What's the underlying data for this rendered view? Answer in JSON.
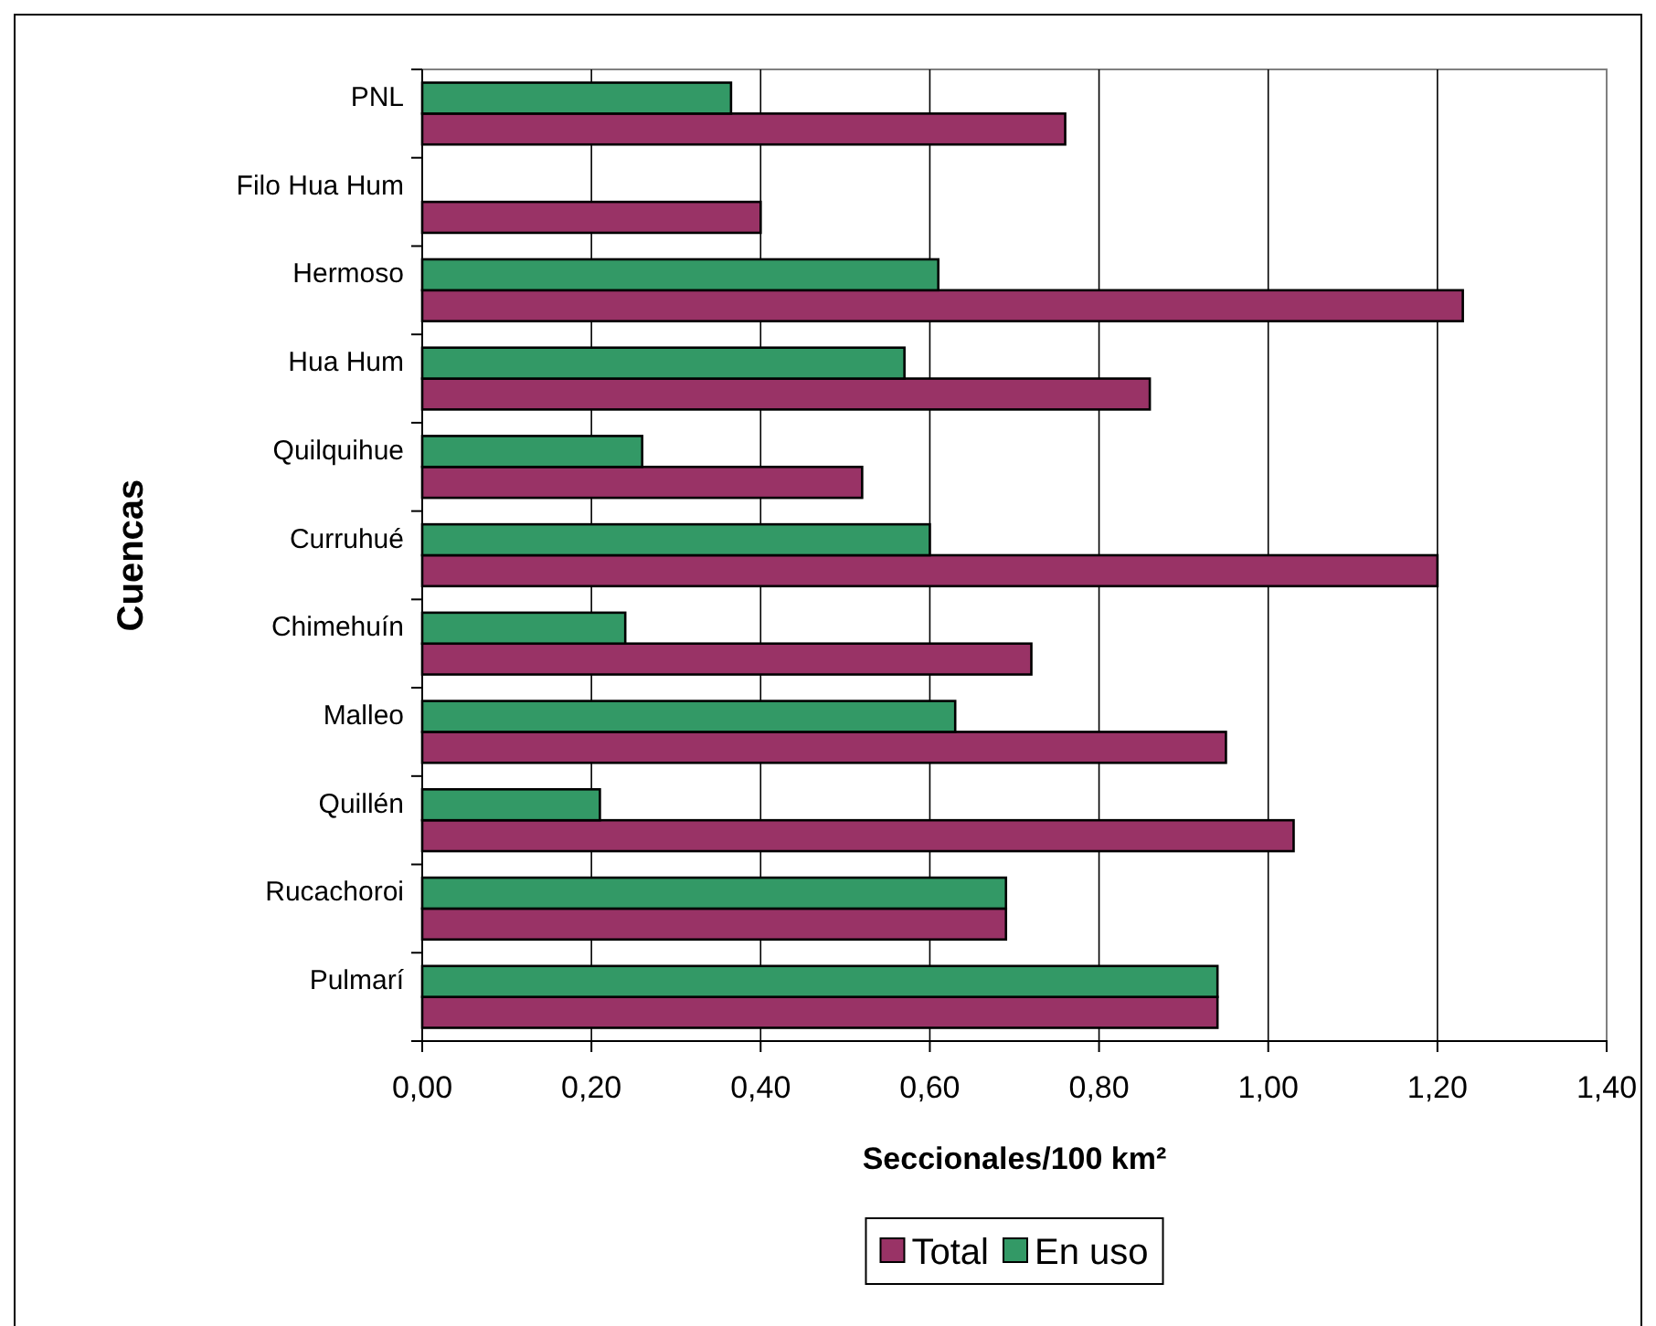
{
  "chart_data": {
    "type": "bar",
    "orientation": "horizontal",
    "xlabel": "Seccionales/100 km²",
    "ylabel": "Cuencas",
    "categories": [
      "PNL",
      "Filo Hua Hum",
      "Hermoso",
      "Hua Hum",
      "Quilquihue",
      "Curruhué",
      "Chimehuín",
      "Malleo",
      "Quillén",
      "Rucachoroi",
      "Pulmarí"
    ],
    "series": [
      {
        "name": "Total",
        "color": "#993366",
        "values": [
          0.76,
          0.4,
          1.23,
          0.86,
          0.52,
          1.2,
          0.72,
          0.95,
          1.03,
          0.69,
          0.94
        ]
      },
      {
        "name": "En uso",
        "color": "#339966",
        "values": [
          0.365,
          null,
          0.61,
          0.57,
          0.26,
          0.6,
          0.24,
          0.63,
          0.21,
          0.69,
          0.94
        ]
      }
    ],
    "xlim": [
      0,
      1.4
    ],
    "xticks": [
      {
        "value": 0,
        "label": "0,00"
      },
      {
        "value": 0.2,
        "label": "0,20"
      },
      {
        "value": 0.4,
        "label": "0,40"
      },
      {
        "value": 0.6,
        "label": "0,60"
      },
      {
        "value": 0.8,
        "label": "0,80"
      },
      {
        "value": 1,
        "label": "1,00"
      },
      {
        "value": 1.2,
        "label": "1,20"
      },
      {
        "value": 1.4,
        "label": "1,40"
      }
    ],
    "grid": "x",
    "legend": "bottom"
  }
}
